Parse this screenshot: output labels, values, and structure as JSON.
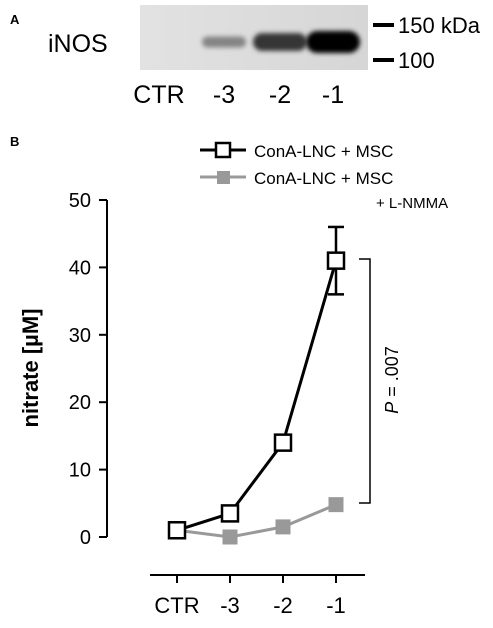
{
  "panels": {
    "a": {
      "letter": "A",
      "row_label": "iNOS",
      "lanes": [
        "CTR",
        "-3",
        "-2",
        "-1"
      ],
      "band_intensity": [
        0.0,
        0.35,
        0.75,
        1.0
      ],
      "markers": [
        "150 kDa",
        "100"
      ]
    },
    "b": {
      "letter": "B"
    }
  },
  "chart_data": {
    "type": "line",
    "categories": [
      "CTR",
      "-3",
      "-2",
      "-1"
    ],
    "ylabel": "nitrate [µM]",
    "xlabel": "",
    "ylim": [
      0,
      50
    ],
    "yticks": [
      "0",
      "10",
      "20",
      "30",
      "40",
      "50"
    ],
    "grid": false,
    "legend_position": "top-right",
    "series": [
      {
        "name": "ConA-LNC + MSC",
        "values": [
          1,
          3.5,
          14,
          41
        ],
        "error": [
          0,
          0,
          0,
          5
        ],
        "color": "#000000",
        "marker": "open-square"
      },
      {
        "name": "ConA-LNC + MSC + L-NMMA",
        "name_lines": [
          "ConA-LNC + MSC",
          "+ L-NMMA"
        ],
        "values": [
          1,
          0,
          1.5,
          4.8
        ],
        "color": "#999999",
        "marker": "filled-square"
      }
    ],
    "annotations": [
      {
        "text_italic": "P",
        "text_rest": " = .007",
        "between_values": [
          41,
          4.8
        ]
      }
    ]
  }
}
